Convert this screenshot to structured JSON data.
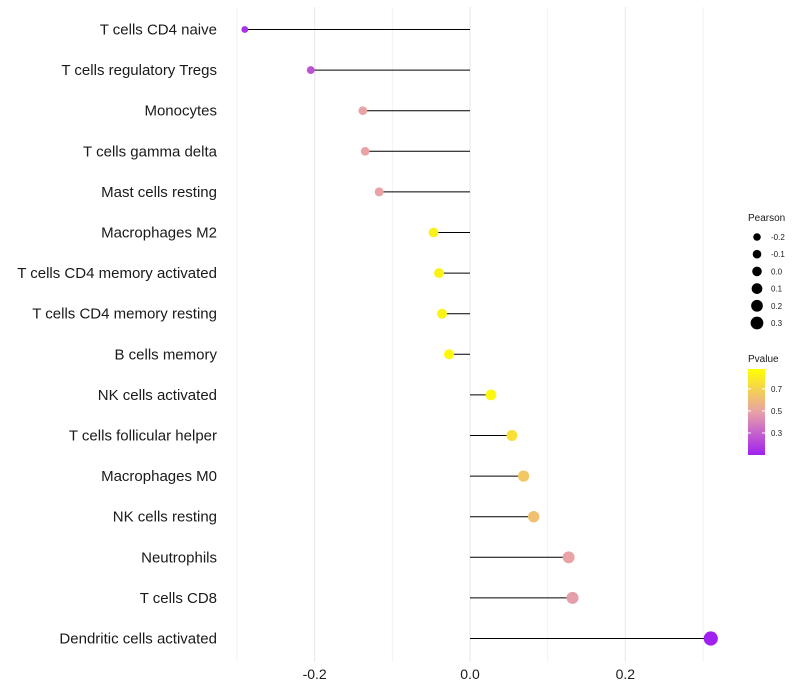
{
  "chart_data": {
    "type": "lollipop",
    "title": "",
    "xlabel": "",
    "ylabel": "",
    "xlim": [
      -0.3,
      0.3
    ],
    "xticks": [
      -0.2,
      0.0,
      0.2
    ],
    "xtick_labels": [
      "-0.2",
      "0.0",
      "0.2"
    ],
    "minor_gridlines": [
      -0.3,
      -0.1,
      0.1,
      0.3
    ],
    "categories": [
      "T cells CD4 naive",
      "T cells regulatory  Tregs",
      "Monocytes",
      "T cells gamma delta",
      "Mast cells resting",
      "Macrophages M2",
      "T cells CD4 memory activated",
      "T cells CD4 memory resting",
      "B cells memory",
      "NK cells activated",
      "T cells follicular helper",
      "Macrophages M0",
      "NK cells resting",
      "Neutrophils",
      "T cells CD8",
      "Dendritic cells activated"
    ],
    "pearson": [
      -0.29,
      -0.205,
      -0.138,
      -0.135,
      -0.117,
      -0.047,
      -0.04,
      -0.036,
      -0.027,
      0.027,
      0.054,
      0.069,
      0.082,
      0.127,
      0.132,
      0.31
    ],
    "pvalue": [
      0.15,
      0.25,
      0.5,
      0.5,
      0.5,
      0.82,
      0.83,
      0.83,
      0.85,
      0.85,
      0.75,
      0.65,
      0.62,
      0.5,
      0.48,
      0.1
    ],
    "legend_size": {
      "title": "Pearson",
      "labels": [
        "-0.2",
        "-0.1",
        "0.0",
        "0.1",
        "0.2",
        "0.3"
      ],
      "values": [
        -0.2,
        -0.1,
        0.0,
        0.1,
        0.2,
        0.3
      ]
    },
    "legend_color": {
      "title": "Pvalue",
      "labels": [
        "0.7",
        "0.5",
        "0.3"
      ],
      "values": [
        0.7,
        0.5,
        0.3
      ],
      "range": [
        0.1,
        0.88
      ],
      "low_color": "#a020f0",
      "mid_color": "#e8a1a8",
      "high_color": "#ffff00"
    }
  }
}
